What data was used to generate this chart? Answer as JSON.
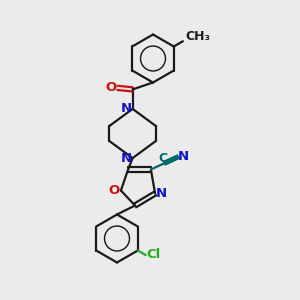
{
  "bg_color": "#ebebeb",
  "bond_color": "#1a1a1a",
  "N_color": "#1111cc",
  "O_color": "#cc1111",
  "Cl_color": "#22aa22",
  "CN_color": "#006666",
  "lw": 1.6,
  "dbo": 0.07,
  "fs": 9.5,
  "figw": 3.0,
  "figh": 3.0,
  "dpi": 100,
  "xlim": [
    0,
    10
  ],
  "ylim": [
    0,
    10
  ]
}
